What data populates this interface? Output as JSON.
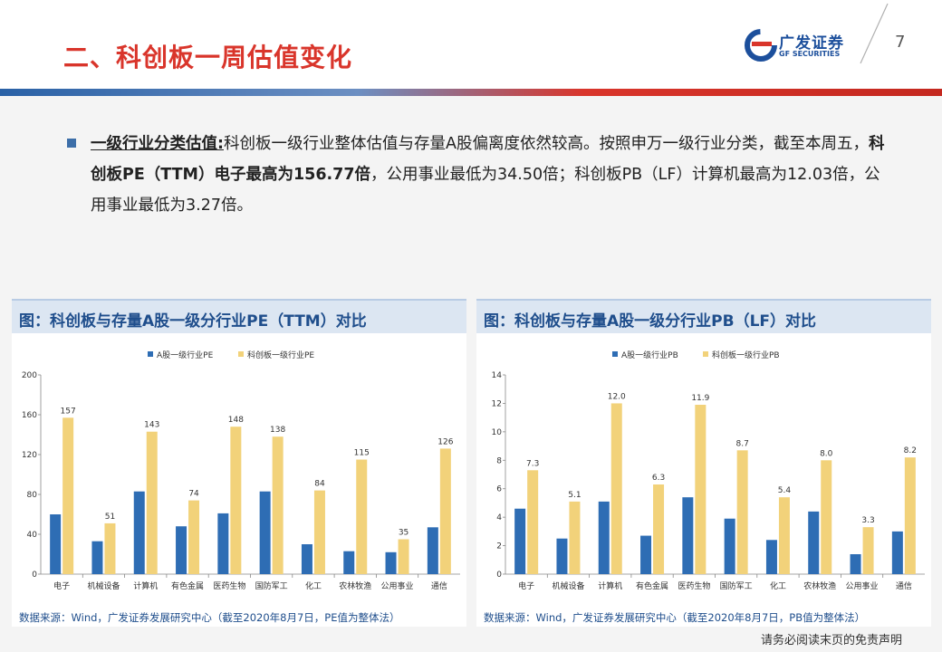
{
  "header": {
    "title": "二、科创板一周估值变化",
    "logo_cn": "广发证券",
    "logo_en": "GF SECURITIES",
    "page_number": "7"
  },
  "body": {
    "lead": "一级行业分类估值:",
    "text_1": "科创板一级行业整体估值与存量A股偏离度依然较高。按照申万一级行业分类，截至本周五，",
    "bold_1": "科创板PE（TTM）电子最高为156.77倍",
    "text_2": "，公用事业最低为34.50倍；科创板PB（LF）计算机最高为12.03倍，公用事业最低为3.27倍。"
  },
  "colors": {
    "a_share": "#2e6db4",
    "star_market": "#f2d27a",
    "title_red": "#d9352b",
    "brand_blue": "#1c4f9c"
  },
  "chart_data": [
    {
      "type": "bar",
      "title": "图：科创板与存量A股一级分行业PE（TTM）对比",
      "categories": [
        "电子",
        "机械设备",
        "计算机",
        "有色金属",
        "医药生物",
        "国防军工",
        "化工",
        "农林牧渔",
        "公用事业",
        "通信"
      ],
      "series": [
        {
          "name": "A股一级行业PE",
          "values": [
            60,
            33,
            83,
            48,
            61,
            83,
            30,
            23,
            22,
            47
          ]
        },
        {
          "name": "科创板一级行业PE",
          "values": [
            157,
            51,
            143,
            74,
            148,
            138,
            84,
            115,
            35,
            126
          ],
          "labels": [
            "157",
            "51",
            "143",
            "74",
            "148",
            "138",
            "84",
            "115",
            "35",
            "126"
          ]
        }
      ],
      "yticks": [
        "0",
        "40",
        "80",
        "120",
        "160",
        "200"
      ],
      "ylim": [
        0,
        200
      ],
      "legend": "top-center",
      "source": "数据来源：Wind，广发证券发展研究中心（截至2020年8月7日，PE值为整体法）"
    },
    {
      "type": "bar",
      "title": "图：科创板与存量A股一级分行业PB（LF）对比",
      "categories": [
        "电子",
        "机械设备",
        "计算机",
        "有色金属",
        "医药生物",
        "国防军工",
        "化工",
        "农林牧渔",
        "公用事业",
        "通信"
      ],
      "series": [
        {
          "name": "A股一级行业PB",
          "values": [
            4.6,
            2.5,
            5.1,
            2.7,
            5.4,
            3.9,
            2.4,
            4.4,
            1.4,
            3.0
          ]
        },
        {
          "name": "科创板一级行业PB",
          "values": [
            7.3,
            5.1,
            12.0,
            6.3,
            11.9,
            8.7,
            5.4,
            8.0,
            3.3,
            8.2
          ],
          "labels": [
            "7.3",
            "5.1",
            "12.0",
            "6.3",
            "11.9",
            "8.7",
            "5.4",
            "8.0",
            "3.3",
            "8.2"
          ]
        }
      ],
      "yticks": [
        "0",
        "2",
        "4",
        "6",
        "8",
        "10",
        "12",
        "14"
      ],
      "ylim": [
        0,
        14
      ],
      "legend": "top-center",
      "source": "数据来源：Wind，广发证券发展研究中心（截至2020年8月7日，PB值为整体法）"
    }
  ],
  "footer": {
    "disclaimer": "请务必阅读末页的免责声明"
  }
}
